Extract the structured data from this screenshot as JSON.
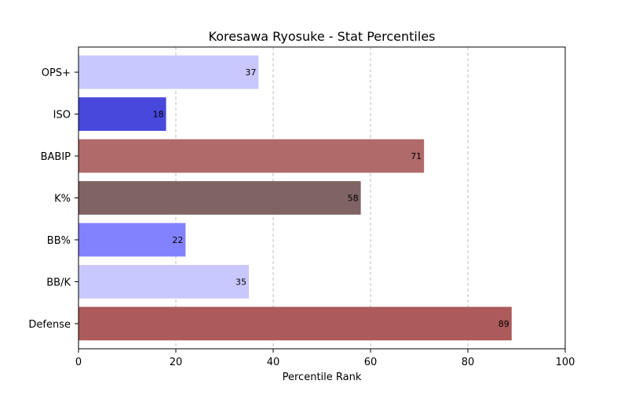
{
  "chart_data": {
    "type": "bar",
    "orientation": "horizontal",
    "title": "Koresawa Ryosuke - Stat Percentiles",
    "xlabel": "Percentile Rank",
    "ylabel": "",
    "xlim": [
      0,
      100
    ],
    "xticks": [
      "0",
      "20",
      "40",
      "60",
      "80",
      "100"
    ],
    "xtick_values": [
      0,
      20,
      40,
      60,
      80,
      100
    ],
    "grid": "x-dashed",
    "categories": [
      "OPS+",
      "ISO",
      "BABIP",
      "K%",
      "BB%",
      "BB/K",
      "Defense"
    ],
    "values": [
      37,
      18,
      71,
      58,
      22,
      35,
      89
    ],
    "colors": [
      "#c8c8ff",
      "#4848dc",
      "#b06a6a",
      "#806464",
      "#8282ff",
      "#c8c8ff",
      "#ac5a5a"
    ]
  }
}
